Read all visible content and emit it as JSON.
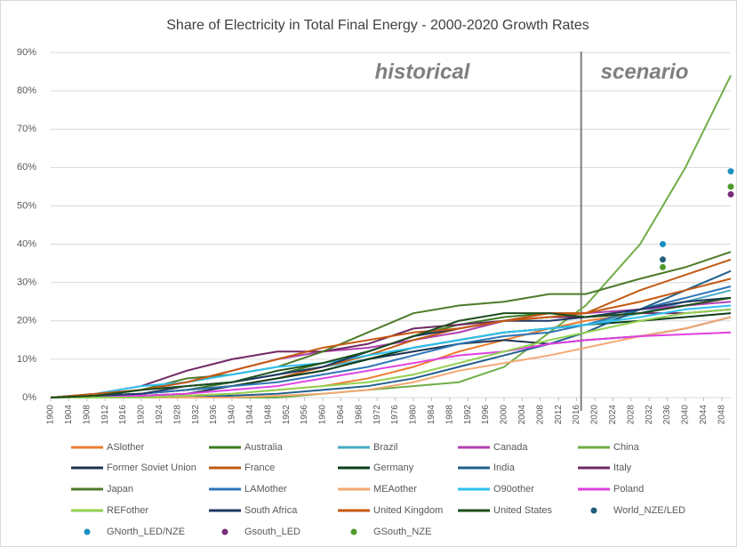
{
  "chart_data": {
    "type": "line",
    "title": "Share of Electricity in Total Final Energy - 2000-2020 Growth Rates",
    "annotations": [
      "historical",
      "scenario"
    ],
    "divider_x": 2017,
    "grid": true,
    "xlim": [
      1900,
      2050
    ],
    "ylim": [
      0,
      90
    ],
    "yticks": [
      {
        "value": 0,
        "label": "0%"
      },
      {
        "value": 10,
        "label": "10%"
      },
      {
        "value": 20,
        "label": "20%"
      },
      {
        "value": 30,
        "label": "30%"
      },
      {
        "value": 40,
        "label": "40%"
      },
      {
        "value": 50,
        "label": "50%"
      },
      {
        "value": 60,
        "label": "60%"
      },
      {
        "value": 70,
        "label": "70%"
      },
      {
        "value": 80,
        "label": "80%"
      },
      {
        "value": 90,
        "label": "90%"
      }
    ],
    "xticks": [
      1900,
      1904,
      1908,
      1912,
      1916,
      1920,
      1924,
      1928,
      1932,
      1936,
      1940,
      1944,
      1948,
      1952,
      1956,
      1960,
      1964,
      1968,
      1972,
      1976,
      1980,
      1984,
      1988,
      1992,
      1996,
      2000,
      2004,
      2008,
      2012,
      2016,
      2020,
      2024,
      2028,
      2032,
      2036,
      2040,
      2044,
      2048
    ],
    "x": [
      1900,
      1910,
      1920,
      1930,
      1940,
      1950,
      1960,
      1970,
      1980,
      1990,
      2000,
      2010,
      2018,
      2030,
      2040,
      2050
    ],
    "series": [
      {
        "name": "ASlother",
        "color": "#ed7d31",
        "values": [
          0,
          0,
          0,
          0.5,
          1,
          2,
          3,
          5,
          8,
          12,
          15,
          18,
          20,
          22,
          24,
          26
        ]
      },
      {
        "name": "Australia",
        "color": "#3a7d22",
        "values": [
          0,
          0.5,
          1,
          2,
          4,
          6,
          9,
          12,
          16,
          19,
          21,
          22,
          21,
          23,
          25,
          26
        ]
      },
      {
        "name": "Brazil",
        "color": "#4bacc6",
        "values": [
          0,
          0.5,
          2,
          3,
          4,
          6,
          8,
          10,
          13,
          15,
          17,
          18,
          19,
          22,
          25,
          28
        ]
      },
      {
        "name": "Canada",
        "color": "#b040b0",
        "values": [
          0,
          0.5,
          2,
          4,
          7,
          10,
          12,
          13,
          15,
          17,
          20,
          22,
          22,
          23,
          24,
          25
        ]
      },
      {
        "name": "China",
        "color": "#70ad47",
        "values": [
          0,
          0,
          0,
          0,
          0,
          0,
          1,
          2,
          3,
          4,
          8,
          17,
          24,
          40,
          60,
          84
        ]
      },
      {
        "name": "Former Soviet Union",
        "color": "#1c3550",
        "values": [
          0,
          0,
          0.5,
          1,
          3,
          5,
          7,
          10,
          12,
          14,
          15,
          14,
          15,
          16,
          18,
          21
        ]
      },
      {
        "name": "France",
        "color": "#c05a11",
        "values": [
          0,
          0.5,
          1,
          2,
          3,
          5,
          8,
          11,
          15,
          18,
          20,
          22,
          22,
          28,
          32,
          36
        ]
      },
      {
        "name": "Germany",
        "color": "#0e3d1a",
        "values": [
          0,
          0.5,
          1,
          2,
          3,
          5,
          7,
          10,
          13,
          15,
          17,
          18,
          19,
          20,
          21,
          22
        ]
      },
      {
        "name": "India",
        "color": "#1f5f8b",
        "values": [
          0,
          0,
          0,
          0,
          0.5,
          1,
          2,
          3,
          5,
          8,
          11,
          14,
          17,
          23,
          28,
          33
        ]
      },
      {
        "name": "Italy",
        "color": "#702963",
        "values": [
          0,
          1,
          3,
          7,
          10,
          12,
          12,
          14,
          18,
          19,
          20,
          21,
          21,
          22,
          22,
          23
        ]
      },
      {
        "name": "Japan",
        "color": "#4e7a2a",
        "values": [
          0,
          0.5,
          2,
          5,
          6,
          8,
          12,
          17,
          22,
          24,
          25,
          27,
          27,
          31,
          34,
          38
        ]
      },
      {
        "name": "LAMother",
        "color": "#2e75b6",
        "values": [
          0,
          0,
          1,
          2,
          3,
          4,
          6,
          8,
          11,
          14,
          16,
          17,
          19,
          23,
          26,
          29
        ]
      },
      {
        "name": "MEAother",
        "color": "#f4a873",
        "values": [
          0,
          0,
          0,
          0,
          0,
          0.5,
          1,
          2,
          4,
          7,
          9,
          11,
          13,
          16,
          18,
          21
        ]
      },
      {
        "name": "O90other",
        "color": "#2fc0f0",
        "values": [
          0,
          1,
          3,
          4,
          6,
          8,
          9,
          11,
          13,
          15,
          17,
          18,
          19,
          21,
          23,
          24
        ]
      },
      {
        "name": "Poland",
        "color": "#e040e0",
        "values": [
          0,
          0,
          0.5,
          1,
          2,
          3,
          5,
          7,
          9,
          11,
          12,
          14,
          15,
          16,
          16.5,
          17
        ]
      },
      {
        "name": "REFother",
        "color": "#92d050",
        "values": [
          0,
          0,
          0,
          0.5,
          1,
          2,
          3,
          4,
          6,
          9,
          12,
          15,
          17,
          20,
          22,
          23
        ]
      },
      {
        "name": "South Africa",
        "color": "#203864",
        "values": [
          0,
          0.5,
          1,
          3,
          4,
          6,
          8,
          12,
          16,
          18,
          20,
          20,
          21,
          23,
          25,
          26
        ]
      },
      {
        "name": "United Kingdom",
        "color": "#c65911",
        "values": [
          0,
          1,
          2,
          4,
          7,
          10,
          13,
          15,
          17,
          18,
          20,
          21,
          22,
          25,
          28,
          31
        ]
      },
      {
        "name": "United States",
        "color": "#1d4e1d",
        "values": [
          0,
          0.5,
          2,
          3,
          4,
          7,
          9,
          12,
          16,
          20,
          22,
          22,
          21,
          22,
          24,
          26
        ]
      },
      {
        "name": "World_NZE/LED",
        "color": "#1f5f7b",
        "type": "scatter",
        "x": [
          2035
        ],
        "values": [
          36
        ]
      },
      {
        "name": "GNorth_LED/NZE",
        "color": "#1b8fc0",
        "type": "scatter",
        "x": [
          2035,
          2050
        ],
        "values": [
          40,
          59
        ]
      },
      {
        "name": "Gsouth_LED",
        "color": "#7b2c7b",
        "type": "scatter",
        "x": [
          2050
        ],
        "values": [
          53
        ]
      },
      {
        "name": "GSouth_NZE",
        "color": "#4f9a2c",
        "type": "scatter",
        "x": [
          2035,
          2050
        ],
        "values": [
          34,
          55
        ]
      }
    ]
  }
}
